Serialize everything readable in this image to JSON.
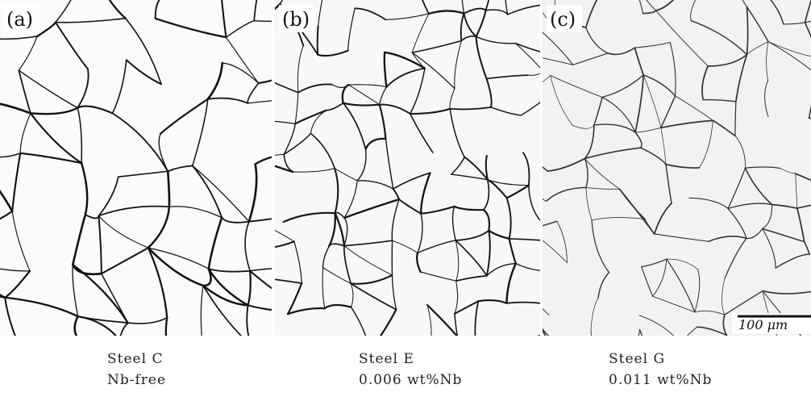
{
  "panels": [
    {
      "label": "(a)",
      "caption": [
        "Steel C",
        "Nb-free"
      ]
    },
    {
      "label": "(b)",
      "caption": [
        "Steel E",
        "0.006 wt%Nb"
      ]
    },
    {
      "label": "(c)",
      "caption": [
        "Steel G",
        "0.011 wt%Nb"
      ]
    }
  ],
  "scale_bar": "100 μm"
}
